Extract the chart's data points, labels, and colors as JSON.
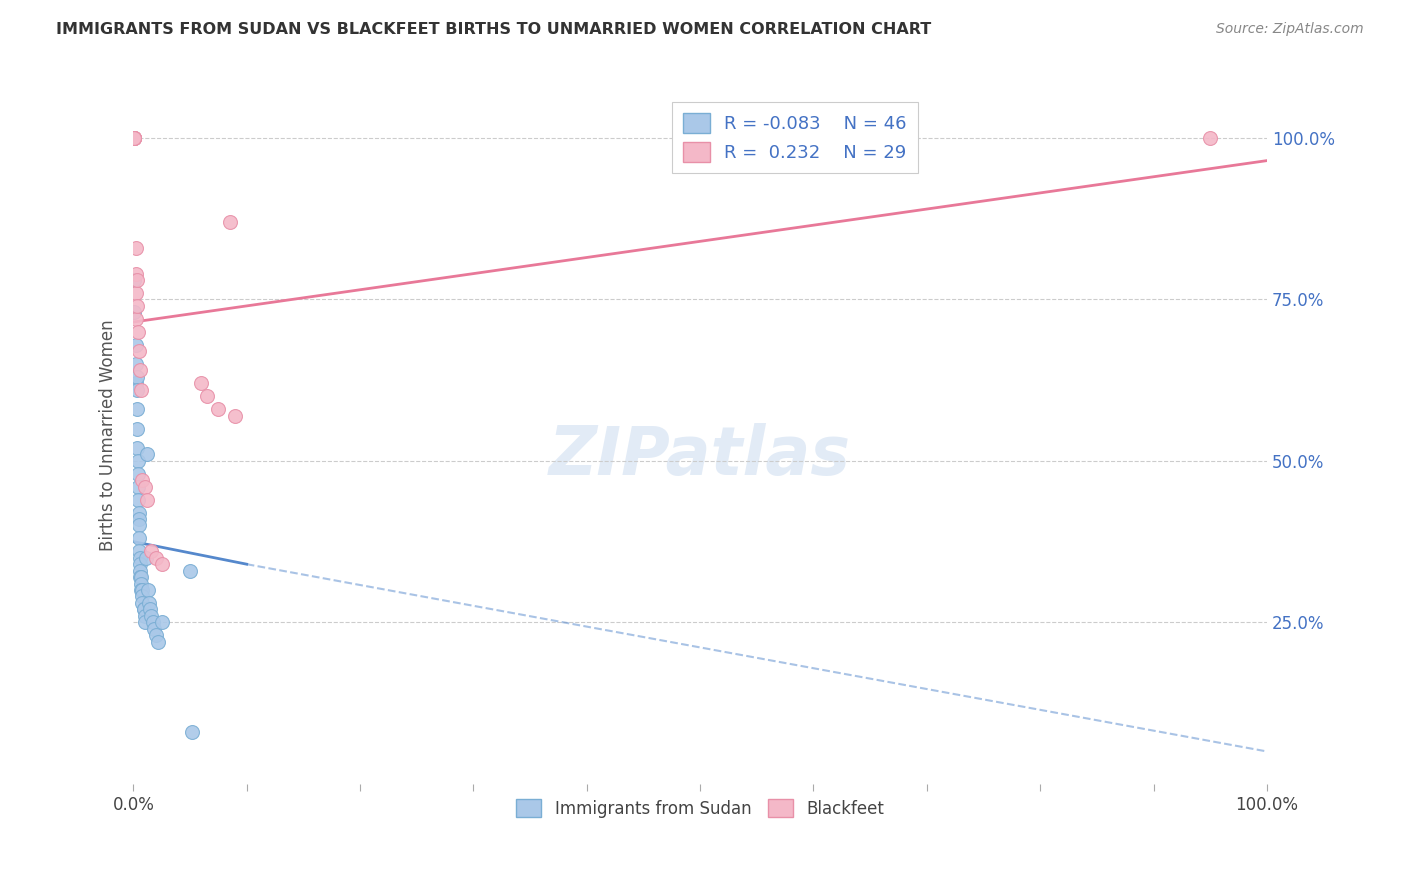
{
  "title": "IMMIGRANTS FROM SUDAN VS BLACKFEET BIRTHS TO UNMARRIED WOMEN CORRELATION CHART",
  "source": "Source: ZipAtlas.com",
  "ylabel": "Births to Unmarried Women",
  "legend_label1": "Immigrants from Sudan",
  "legend_label2": "Blackfeet",
  "R1": -0.083,
  "N1": 46,
  "R2": 0.232,
  "N2": 29,
  "color_blue_fill": "#aac8e8",
  "color_blue_edge": "#7aaed4",
  "color_pink_fill": "#f4b8c8",
  "color_pink_edge": "#e890a8",
  "color_blue_line": "#5588cc",
  "color_pink_line": "#e87898",
  "bg_color": "#ffffff",
  "grid_color": "#cccccc",
  "xlim": [
    0.0,
    1.0
  ],
  "ylim": [
    0.0,
    1.08
  ],
  "xticks": [
    0.0,
    0.1,
    0.2,
    0.3,
    0.4,
    0.5,
    0.6,
    0.7,
    0.8,
    0.9,
    1.0
  ],
  "xtick_labels_show": [
    "0.0%",
    "",
    "",
    "",
    "",
    "",
    "",
    "",
    "",
    "",
    "100.0%"
  ],
  "yticks": [
    0.25,
    0.5,
    0.75,
    1.0
  ],
  "ytick_labels": [
    "25.0%",
    "50.0%",
    "75.0%",
    "100.0%"
  ],
  "sudan_x": [
    0.001,
    0.001,
    0.002,
    0.002,
    0.002,
    0.003,
    0.003,
    0.003,
    0.003,
    0.003,
    0.004,
    0.004,
    0.004,
    0.004,
    0.005,
    0.005,
    0.005,
    0.005,
    0.005,
    0.006,
    0.006,
    0.006,
    0.006,
    0.007,
    0.007,
    0.007,
    0.008,
    0.008,
    0.008,
    0.009,
    0.009,
    0.01,
    0.01,
    0.011,
    0.012,
    0.013,
    0.014,
    0.015,
    0.016,
    0.017,
    0.018,
    0.02,
    0.022,
    0.025,
    0.05,
    0.052
  ],
  "sudan_y": [
    0.78,
    0.73,
    0.68,
    0.65,
    0.62,
    0.63,
    0.61,
    0.58,
    0.55,
    0.52,
    0.5,
    0.48,
    0.46,
    0.44,
    0.42,
    0.41,
    0.4,
    0.38,
    0.36,
    0.35,
    0.34,
    0.33,
    0.32,
    0.32,
    0.31,
    0.3,
    0.3,
    0.29,
    0.28,
    0.27,
    0.27,
    0.26,
    0.25,
    0.35,
    0.51,
    0.3,
    0.28,
    0.27,
    0.26,
    0.25,
    0.24,
    0.23,
    0.22,
    0.25,
    0.33,
    0.08
  ],
  "blackfeet_x": [
    0.001,
    0.001,
    0.001,
    0.001,
    0.001,
    0.001,
    0.001,
    0.002,
    0.002,
    0.002,
    0.002,
    0.003,
    0.003,
    0.004,
    0.005,
    0.006,
    0.007,
    0.008,
    0.01,
    0.012,
    0.016,
    0.02,
    0.025,
    0.06,
    0.065,
    0.075,
    0.085,
    0.09,
    0.95
  ],
  "blackfeet_y": [
    1.0,
    1.0,
    1.0,
    1.0,
    1.0,
    1.0,
    1.0,
    0.83,
    0.79,
    0.76,
    0.72,
    0.78,
    0.74,
    0.7,
    0.67,
    0.64,
    0.61,
    0.47,
    0.46,
    0.44,
    0.36,
    0.35,
    0.34,
    0.62,
    0.6,
    0.58,
    0.87,
    0.57,
    1.0
  ],
  "blue_line_x0": 0.0,
  "blue_line_x_solid_end": 0.1,
  "blue_line_x_dashed_end": 1.0,
  "blue_line_y_start": 0.375,
  "blue_line_y_solid_end": 0.34,
  "blue_line_y_dashed_end": 0.05,
  "pink_line_x0": 0.0,
  "pink_line_x1": 1.0,
  "pink_line_y0": 0.715,
  "pink_line_y1": 0.965
}
